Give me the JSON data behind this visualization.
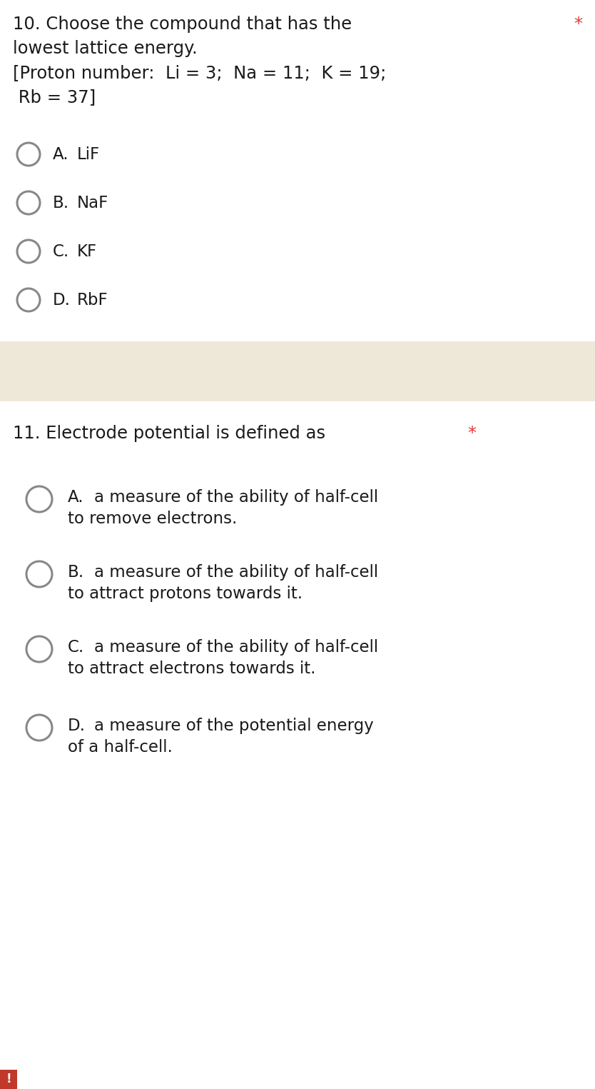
{
  "bg_color": "#ffffff",
  "divider_color": "#ede8d8",
  "text_color": "#1a1a1a",
  "asterisk_color": "#e53935",
  "circle_edge_color": "#888888",
  "font_size_q": 17.5,
  "font_size_opt": 16.5,
  "q1_lines": [
    "10. Choose the compound that has the",
    "lowest lattice energy.",
    "[Proton number:  Li = 3;  Na = 11;  K = 19;",
    " Rb = 37]"
  ],
  "q1_options": [
    {
      "label": "A.",
      "text": "LiF"
    },
    {
      "label": "B.",
      "text": "NaF"
    },
    {
      "label": "C.",
      "text": "KF"
    },
    {
      "label": "D.",
      "text": "RbF"
    }
  ],
  "q2_line": "11. Electrode potential is defined as",
  "q2_options": [
    {
      "label": "A.",
      "line1": "a measure of the ability of half-cell",
      "line2": "to remove electrons."
    },
    {
      "label": "B.",
      "line1": "a measure of the ability of half-cell",
      "line2": "to attract protons towards it."
    },
    {
      "label": "C.",
      "line1": "a measure of the ability of half-cell",
      "line2": "to attract electrons towards it."
    },
    {
      "label": "D.",
      "line1": "a measure of the potential energy",
      "line2": "of a half-cell."
    }
  ],
  "exclaim_bg": "#c0392b",
  "exclaim_color": "#ffffff"
}
